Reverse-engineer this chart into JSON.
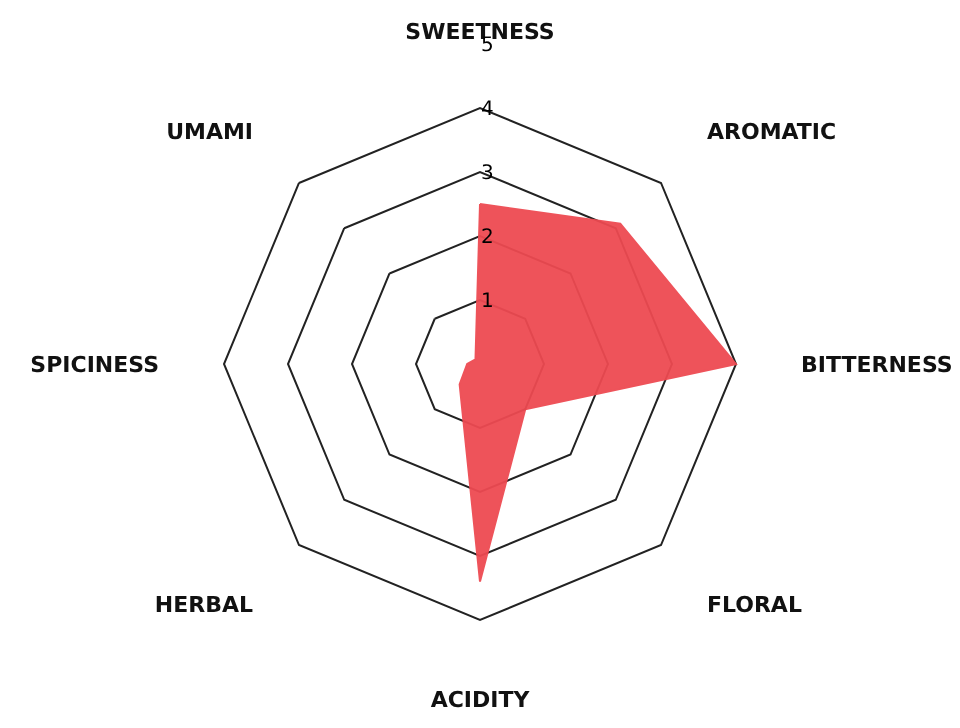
{
  "chart_data": {
    "type": "radar",
    "categories": [
      "SWEETNESS",
      "AROMATIC",
      "BITTERNESS",
      "FLORAL",
      "ACIDITY",
      "HERBAL",
      "SPICINESS",
      "UMAMI"
    ],
    "series": [
      {
        "color": "#ee4a52",
        "values": [
          2.5,
          3.1,
          4.0,
          1.0,
          3.4,
          0.45,
          0.2,
          0.1
        ]
      }
    ],
    "ylim": [
      0,
      5
    ],
    "yticks": [
      1,
      2,
      3,
      4,
      5
    ],
    "grid": true
  }
}
